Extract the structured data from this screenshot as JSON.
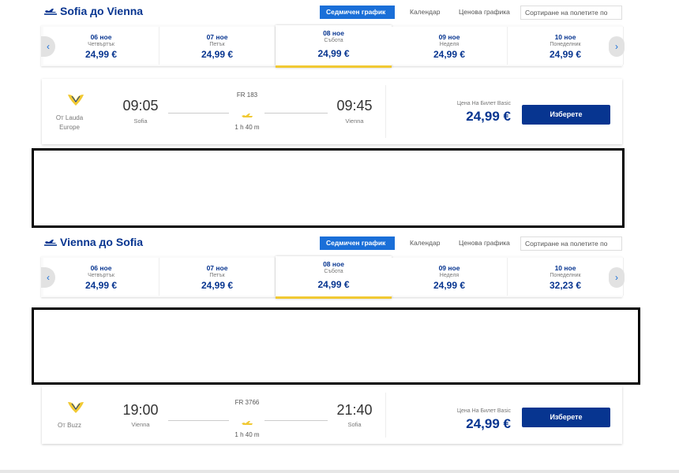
{
  "sections": [
    {
      "title": "Sofia до Vienna",
      "tabs": [
        "Седмичен график",
        "Календар",
        "Ценова графика"
      ],
      "sort": "Сортиране на полетите по",
      "dates": [
        {
          "date": "06 ное",
          "day": "Четвъртък",
          "price": "24,99 €"
        },
        {
          "date": "07 ное",
          "day": "Петък",
          "price": "24,99 €"
        },
        {
          "date": "08 ное",
          "day": "Събота",
          "price": "24,99 €"
        },
        {
          "date": "09 ное",
          "day": "Неделя",
          "price": "24,99 €"
        },
        {
          "date": "10 ное",
          "day": "Понеделник",
          "price": "24,99 €"
        }
      ],
      "flight": {
        "operator": "От Lauda Europe",
        "departure_time": "09:05",
        "departure_city": "Sofia",
        "number": "FR 183",
        "duration": "1 h 40 m",
        "arrival_time": "09:45",
        "arrival_city": "Vienna",
        "fare_label": "Цена На Билет Basic",
        "price": "24,99 €",
        "button": "Изберете"
      }
    },
    {
      "title": "Vienna до Sofia",
      "tabs": [
        "Седмичен график",
        "Календар",
        "Ценова графика"
      ],
      "sort": "Сортиране на полетите по",
      "dates": [
        {
          "date": "06 ное",
          "day": "Четвъртък",
          "price": "24,99 €"
        },
        {
          "date": "07 ное",
          "day": "Петък",
          "price": "24,99 €"
        },
        {
          "date": "08 ное",
          "day": "Събота",
          "price": "24,99 €"
        },
        {
          "date": "09 ное",
          "day": "Неделя",
          "price": "24,99 €"
        },
        {
          "date": "10 ное",
          "day": "Понеделник",
          "price": "32,23 €"
        }
      ],
      "flight": {
        "operator": "От Buzz",
        "departure_time": "19:00",
        "departure_city": "Vienna",
        "number": "FR 3766",
        "duration": "1 h 40 m",
        "arrival_time": "21:40",
        "arrival_city": "Sofia",
        "fare_label": "Цена На Билет Basic",
        "price": "24,99 €",
        "button": "Изберете"
      }
    }
  ]
}
